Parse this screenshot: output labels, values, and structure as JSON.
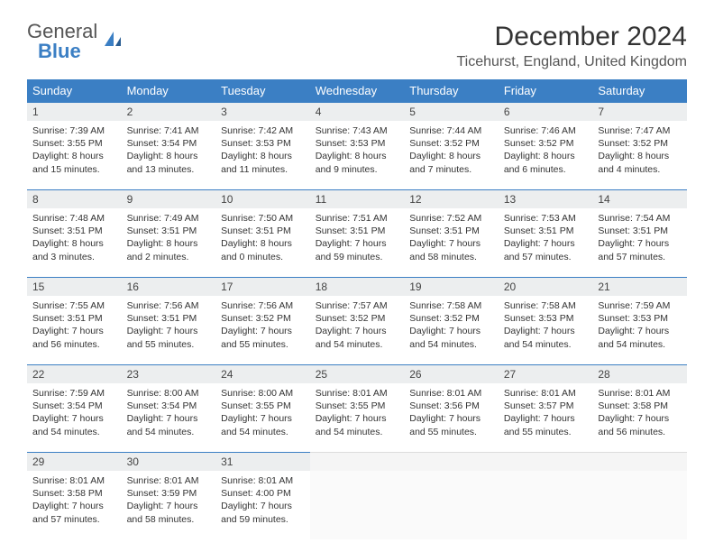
{
  "brand": {
    "general": "General",
    "blue": "Blue"
  },
  "title": "December 2024",
  "location": "Ticehurst, England, United Kingdom",
  "colors": {
    "accent": "#3b7fc4",
    "header_bg": "#3b7fc4",
    "daynum_bg": "#eceeef"
  },
  "weekdays": [
    "Sunday",
    "Monday",
    "Tuesday",
    "Wednesday",
    "Thursday",
    "Friday",
    "Saturday"
  ],
  "weeks": [
    [
      {
        "n": "1",
        "sunrise": "Sunrise: 7:39 AM",
        "sunset": "Sunset: 3:55 PM",
        "daylight": "Daylight: 8 hours and 15 minutes."
      },
      {
        "n": "2",
        "sunrise": "Sunrise: 7:41 AM",
        "sunset": "Sunset: 3:54 PM",
        "daylight": "Daylight: 8 hours and 13 minutes."
      },
      {
        "n": "3",
        "sunrise": "Sunrise: 7:42 AM",
        "sunset": "Sunset: 3:53 PM",
        "daylight": "Daylight: 8 hours and 11 minutes."
      },
      {
        "n": "4",
        "sunrise": "Sunrise: 7:43 AM",
        "sunset": "Sunset: 3:53 PM",
        "daylight": "Daylight: 8 hours and 9 minutes."
      },
      {
        "n": "5",
        "sunrise": "Sunrise: 7:44 AM",
        "sunset": "Sunset: 3:52 PM",
        "daylight": "Daylight: 8 hours and 7 minutes."
      },
      {
        "n": "6",
        "sunrise": "Sunrise: 7:46 AM",
        "sunset": "Sunset: 3:52 PM",
        "daylight": "Daylight: 8 hours and 6 minutes."
      },
      {
        "n": "7",
        "sunrise": "Sunrise: 7:47 AM",
        "sunset": "Sunset: 3:52 PM",
        "daylight": "Daylight: 8 hours and 4 minutes."
      }
    ],
    [
      {
        "n": "8",
        "sunrise": "Sunrise: 7:48 AM",
        "sunset": "Sunset: 3:51 PM",
        "daylight": "Daylight: 8 hours and 3 minutes."
      },
      {
        "n": "9",
        "sunrise": "Sunrise: 7:49 AM",
        "sunset": "Sunset: 3:51 PM",
        "daylight": "Daylight: 8 hours and 2 minutes."
      },
      {
        "n": "10",
        "sunrise": "Sunrise: 7:50 AM",
        "sunset": "Sunset: 3:51 PM",
        "daylight": "Daylight: 8 hours and 0 minutes."
      },
      {
        "n": "11",
        "sunrise": "Sunrise: 7:51 AM",
        "sunset": "Sunset: 3:51 PM",
        "daylight": "Daylight: 7 hours and 59 minutes."
      },
      {
        "n": "12",
        "sunrise": "Sunrise: 7:52 AM",
        "sunset": "Sunset: 3:51 PM",
        "daylight": "Daylight: 7 hours and 58 minutes."
      },
      {
        "n": "13",
        "sunrise": "Sunrise: 7:53 AM",
        "sunset": "Sunset: 3:51 PM",
        "daylight": "Daylight: 7 hours and 57 minutes."
      },
      {
        "n": "14",
        "sunrise": "Sunrise: 7:54 AM",
        "sunset": "Sunset: 3:51 PM",
        "daylight": "Daylight: 7 hours and 57 minutes."
      }
    ],
    [
      {
        "n": "15",
        "sunrise": "Sunrise: 7:55 AM",
        "sunset": "Sunset: 3:51 PM",
        "daylight": "Daylight: 7 hours and 56 minutes."
      },
      {
        "n": "16",
        "sunrise": "Sunrise: 7:56 AM",
        "sunset": "Sunset: 3:51 PM",
        "daylight": "Daylight: 7 hours and 55 minutes."
      },
      {
        "n": "17",
        "sunrise": "Sunrise: 7:56 AM",
        "sunset": "Sunset: 3:52 PM",
        "daylight": "Daylight: 7 hours and 55 minutes."
      },
      {
        "n": "18",
        "sunrise": "Sunrise: 7:57 AM",
        "sunset": "Sunset: 3:52 PM",
        "daylight": "Daylight: 7 hours and 54 minutes."
      },
      {
        "n": "19",
        "sunrise": "Sunrise: 7:58 AM",
        "sunset": "Sunset: 3:52 PM",
        "daylight": "Daylight: 7 hours and 54 minutes."
      },
      {
        "n": "20",
        "sunrise": "Sunrise: 7:58 AM",
        "sunset": "Sunset: 3:53 PM",
        "daylight": "Daylight: 7 hours and 54 minutes."
      },
      {
        "n": "21",
        "sunrise": "Sunrise: 7:59 AM",
        "sunset": "Sunset: 3:53 PM",
        "daylight": "Daylight: 7 hours and 54 minutes."
      }
    ],
    [
      {
        "n": "22",
        "sunrise": "Sunrise: 7:59 AM",
        "sunset": "Sunset: 3:54 PM",
        "daylight": "Daylight: 7 hours and 54 minutes."
      },
      {
        "n": "23",
        "sunrise": "Sunrise: 8:00 AM",
        "sunset": "Sunset: 3:54 PM",
        "daylight": "Daylight: 7 hours and 54 minutes."
      },
      {
        "n": "24",
        "sunrise": "Sunrise: 8:00 AM",
        "sunset": "Sunset: 3:55 PM",
        "daylight": "Daylight: 7 hours and 54 minutes."
      },
      {
        "n": "25",
        "sunrise": "Sunrise: 8:01 AM",
        "sunset": "Sunset: 3:55 PM",
        "daylight": "Daylight: 7 hours and 54 minutes."
      },
      {
        "n": "26",
        "sunrise": "Sunrise: 8:01 AM",
        "sunset": "Sunset: 3:56 PM",
        "daylight": "Daylight: 7 hours and 55 minutes."
      },
      {
        "n": "27",
        "sunrise": "Sunrise: 8:01 AM",
        "sunset": "Sunset: 3:57 PM",
        "daylight": "Daylight: 7 hours and 55 minutes."
      },
      {
        "n": "28",
        "sunrise": "Sunrise: 8:01 AM",
        "sunset": "Sunset: 3:58 PM",
        "daylight": "Daylight: 7 hours and 56 minutes."
      }
    ],
    [
      {
        "n": "29",
        "sunrise": "Sunrise: 8:01 AM",
        "sunset": "Sunset: 3:58 PM",
        "daylight": "Daylight: 7 hours and 57 minutes."
      },
      {
        "n": "30",
        "sunrise": "Sunrise: 8:01 AM",
        "sunset": "Sunset: 3:59 PM",
        "daylight": "Daylight: 7 hours and 58 minutes."
      },
      {
        "n": "31",
        "sunrise": "Sunrise: 8:01 AM",
        "sunset": "Sunset: 4:00 PM",
        "daylight": "Daylight: 7 hours and 59 minutes."
      },
      null,
      null,
      null,
      null
    ]
  ]
}
